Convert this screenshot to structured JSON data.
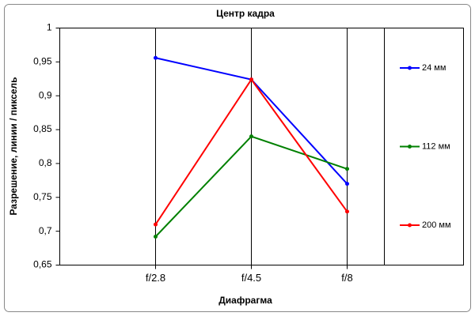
{
  "chart_data": {
    "type": "line",
    "title": "Центр кадра",
    "x_label": "Диафрагма",
    "y_label": "Разрешение, линии / пиксель",
    "categories": [
      "f/2.8",
      "f/4.5",
      "f/8"
    ],
    "series": [
      {
        "name": "24 мм",
        "color": "#0000ff",
        "values": [
          0.956,
          0.924,
          0.77
        ]
      },
      {
        "name": "112 мм",
        "color": "#008000",
        "values": [
          0.692,
          0.84,
          0.792
        ]
      },
      {
        "name": "200 мм",
        "color": "#ff0000",
        "values": [
          0.71,
          0.924,
          0.729
        ]
      }
    ],
    "ylim": [
      0.65,
      1
    ],
    "yticks": [
      {
        "value": 0.65,
        "label": "0,65"
      },
      {
        "value": 0.7,
        "label": "0,7"
      },
      {
        "value": 0.75,
        "label": "0,75"
      },
      {
        "value": 0.8,
        "label": "0,8"
      },
      {
        "value": 0.85,
        "label": "0,85"
      },
      {
        "value": 0.9,
        "label": "0,9"
      },
      {
        "value": 0.95,
        "label": "0,95"
      },
      1
    ],
    "legend": "right"
  }
}
